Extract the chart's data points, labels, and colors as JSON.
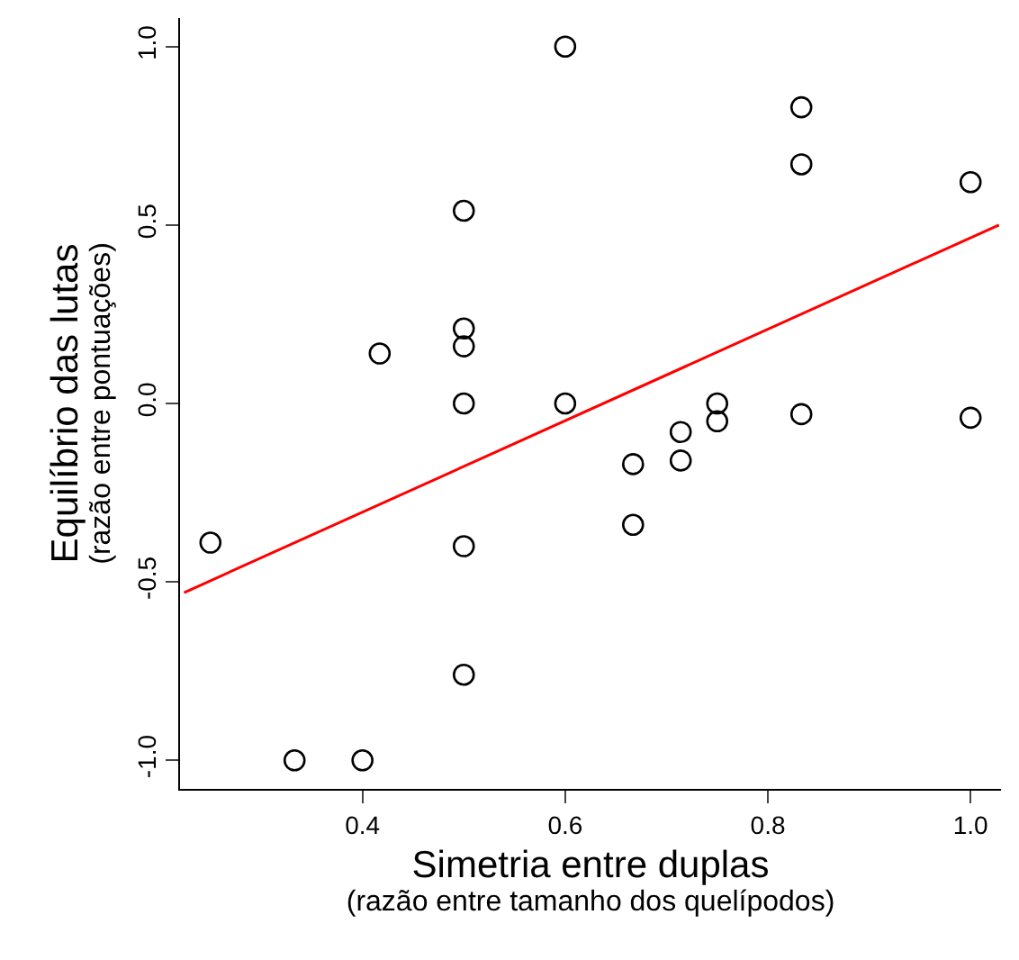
{
  "chart_data": {
    "type": "scatter",
    "xlabel": "Simetria entre duplas\n(razão entre tamanho dos quelípodos)",
    "ylabel": "Equilíbrio das lutas\n(razão entre pontuações)",
    "series": [
      {
        "color": "#000000",
        "marker": "circle",
        "x": [
          0.25,
          0.333,
          0.4,
          0.417,
          0.5,
          0.5,
          0.5,
          0.5,
          0.5,
          0.5,
          0.6,
          0.6,
          0.667,
          0.667,
          0.714,
          0.714,
          0.75,
          0.75,
          0.833,
          0.833,
          0.833,
          1.0,
          1.0
        ],
        "values": [
          -0.39,
          -1.0,
          -1.0,
          0.14,
          0.54,
          0.21,
          0.16,
          0.0,
          -0.4,
          -0.76,
          1.0,
          0.0,
          -0.17,
          -0.34,
          -0.08,
          -0.16,
          0.0,
          -0.05,
          0.83,
          0.67,
          -0.03,
          0.62,
          -0.04
        ]
      },
      {
        "type": "line",
        "color": "#ff0000",
        "x": [
          0.224,
          1.028
        ],
        "values": [
          -0.53,
          0.5
        ]
      }
    ],
    "xlim": [
      0.22,
      1.03
    ],
    "ylim": [
      -1.08,
      1.08
    ],
    "xticks": [
      {
        "value": 0.4,
        "label": "0.4"
      },
      {
        "value": 0.6,
        "label": "0.6"
      },
      {
        "value": 0.8,
        "label": "0.8"
      },
      {
        "value": 1.0,
        "label": "1.0"
      }
    ],
    "yticks": [
      {
        "value": -1.0,
        "label": "-1.0"
      },
      {
        "value": -0.5,
        "label": "-0.5"
      },
      {
        "value": 0.0,
        "label": "0.0"
      },
      {
        "value": 0.5,
        "label": "0.5"
      },
      {
        "value": 1.0,
        "label": "1.0"
      }
    ]
  }
}
